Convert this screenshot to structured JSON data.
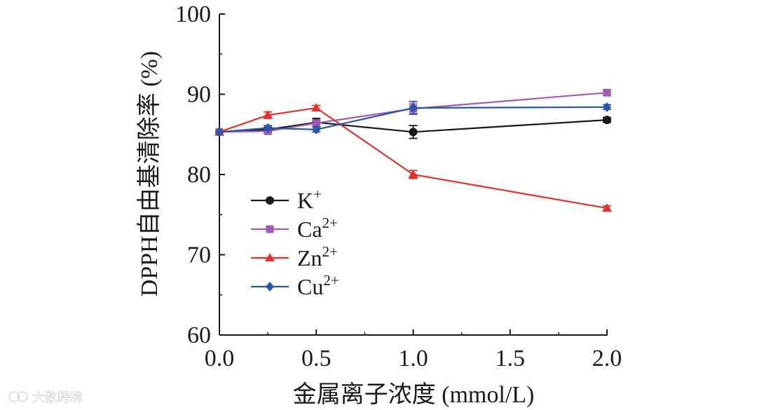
{
  "chart_data": {
    "type": "line",
    "title": "",
    "xlabel": "金属离子浓度 (mmol/L)",
    "ylabel": "DPPH自由基清除率 (%)",
    "xlim": [
      0,
      2
    ],
    "ylim": [
      60,
      100
    ],
    "xticks": [
      "0.0",
      "0.5",
      "1.0",
      "1.5",
      "2.0"
    ],
    "yticks": [
      "60",
      "70",
      "80",
      "90",
      "100"
    ],
    "x": [
      0,
      0.25,
      0.5,
      1.0,
      2.0
    ],
    "legend_position": "center-left",
    "series": [
      {
        "name": "K",
        "sup": "+",
        "color": "#1a1a1a",
        "marker": "circle",
        "values": [
          85.3,
          85.6,
          86.5,
          85.3,
          86.8
        ],
        "errors": [
          0,
          0.3,
          0.5,
          0.8,
          0.3
        ]
      },
      {
        "name": "Ca",
        "sup": "2+",
        "color": "#a45ab4",
        "marker": "square",
        "values": [
          85.3,
          85.4,
          86.4,
          88.2,
          90.2
        ],
        "errors": [
          0,
          0.3,
          0.4,
          0.6,
          0.3
        ]
      },
      {
        "name": "Zn",
        "sup": "2+",
        "color": "#e0322b",
        "marker": "triangle",
        "values": [
          85.3,
          87.4,
          88.3,
          80.0,
          75.8
        ],
        "errors": [
          0,
          0.4,
          0.3,
          0.5,
          0.3
        ]
      },
      {
        "name": "Cu",
        "sup": "2+",
        "color": "#2857a8",
        "marker": "diamond",
        "values": [
          85.3,
          85.8,
          85.6,
          88.3,
          88.4
        ],
        "errors": [
          0,
          0.3,
          0.3,
          0.8,
          0.3
        ]
      }
    ]
  },
  "watermark": {
    "text": "大数跨境",
    "icon": "logo-icon"
  }
}
